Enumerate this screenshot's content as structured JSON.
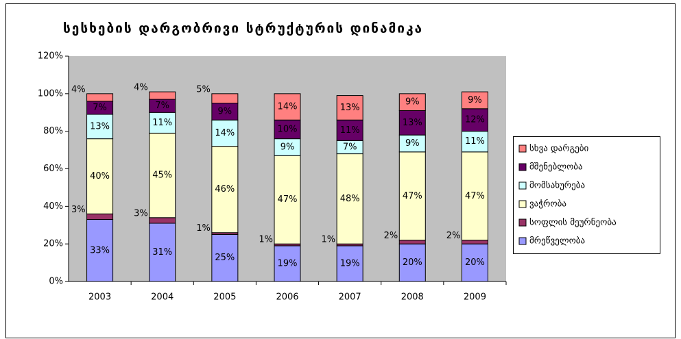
{
  "chart_data": {
    "type": "stacked_bar",
    "title": "სესხების დარგობრივი სტრუქტურის დინამიკა",
    "categories": [
      "2003",
      "2004",
      "2005",
      "2006",
      "2007",
      "2008",
      "2009"
    ],
    "series": [
      {
        "name": "მრეწველობა",
        "color": "#9999ff",
        "values": [
          33,
          31,
          25,
          19,
          19,
          20,
          20
        ],
        "value_labels": [
          "33%",
          "31%",
          "25%",
          "19%",
          "19%",
          "20%",
          "20%"
        ]
      },
      {
        "name": "სოფლის მეურნეობა",
        "color": "#993366",
        "values": [
          3,
          3,
          1,
          1,
          1,
          2,
          2
        ],
        "value_labels": [
          "3%",
          "3%",
          "1%",
          "1%",
          "1%",
          "2%",
          "2%"
        ]
      },
      {
        "name": "ვაჭრობა",
        "color": "#ffffcc",
        "values": [
          40,
          45,
          46,
          47,
          48,
          47,
          47
        ],
        "value_labels": [
          "40%",
          "45%",
          "46%",
          "47%",
          "48%",
          "47%",
          "47%"
        ]
      },
      {
        "name": "მომსახურება",
        "color": "#ccffff",
        "values": [
          13,
          11,
          14,
          9,
          7,
          9,
          11
        ],
        "value_labels": [
          "13%",
          "11%",
          "14%",
          "9%",
          "7%",
          "9%",
          "11%"
        ]
      },
      {
        "name": "მშენებლობა",
        "color": "#660066",
        "values": [
          7,
          7,
          9,
          10,
          11,
          13,
          12
        ],
        "value_labels": [
          "7%",
          "7%",
          "9%",
          "10%",
          "11%",
          "13%",
          "12%"
        ]
      },
      {
        "name": "სხვა დარგები",
        "color": "#ff8080",
        "values": [
          4,
          4,
          5,
          14,
          13,
          9,
          9
        ],
        "value_labels": [
          "4%",
          "4%",
          "5%",
          "14%",
          "13%",
          "9%",
          "9%"
        ]
      }
    ],
    "ylim": [
      0,
      120
    ],
    "yticks": [
      {
        "value": 0,
        "label": "0%"
      },
      {
        "value": 20,
        "label": "20%"
      },
      {
        "value": 40,
        "label": "40%"
      },
      {
        "value": 60,
        "label": "60%"
      },
      {
        "value": 80,
        "label": "80%"
      },
      {
        "value": 100,
        "label": "100%"
      },
      {
        "value": 120,
        "label": "120%"
      }
    ],
    "legend": "right"
  }
}
